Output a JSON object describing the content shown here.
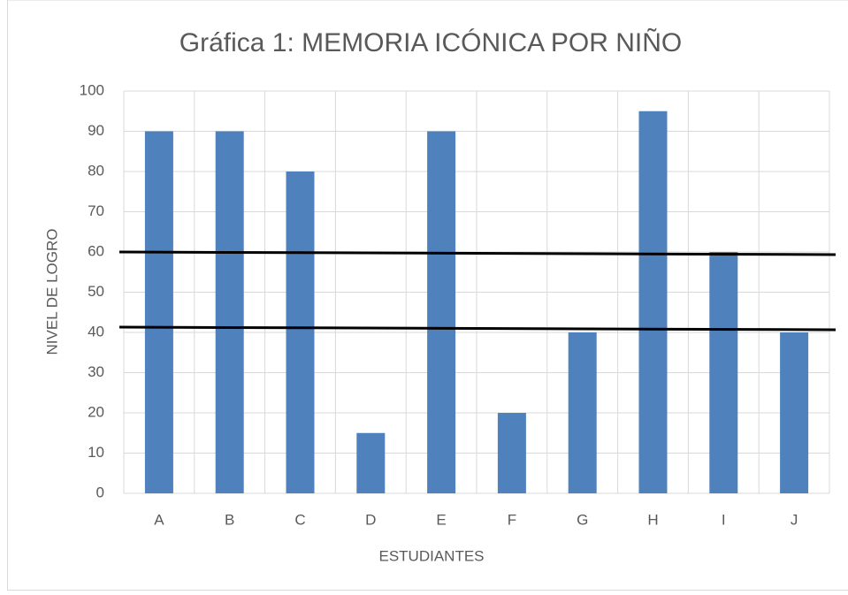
{
  "chart_data": {
    "type": "bar",
    "title": "Gráfica 1: MEMORIA ICÓNICA POR NIÑO",
    "x_label": "ESTUDIANTES",
    "y_label": "NIVEL DE LOGRO",
    "categories": [
      "A",
      "B",
      "C",
      "D",
      "E",
      "F",
      "G",
      "H",
      "I",
      "J"
    ],
    "values": [
      90,
      90,
      80,
      15,
      90,
      20,
      40,
      95,
      60,
      40
    ],
    "color": "#4f81bd",
    "ylim": [
      0,
      100
    ],
    "yticks": [
      0,
      10,
      20,
      30,
      40,
      50,
      60,
      70,
      80,
      90,
      100
    ],
    "grid": true
  }
}
